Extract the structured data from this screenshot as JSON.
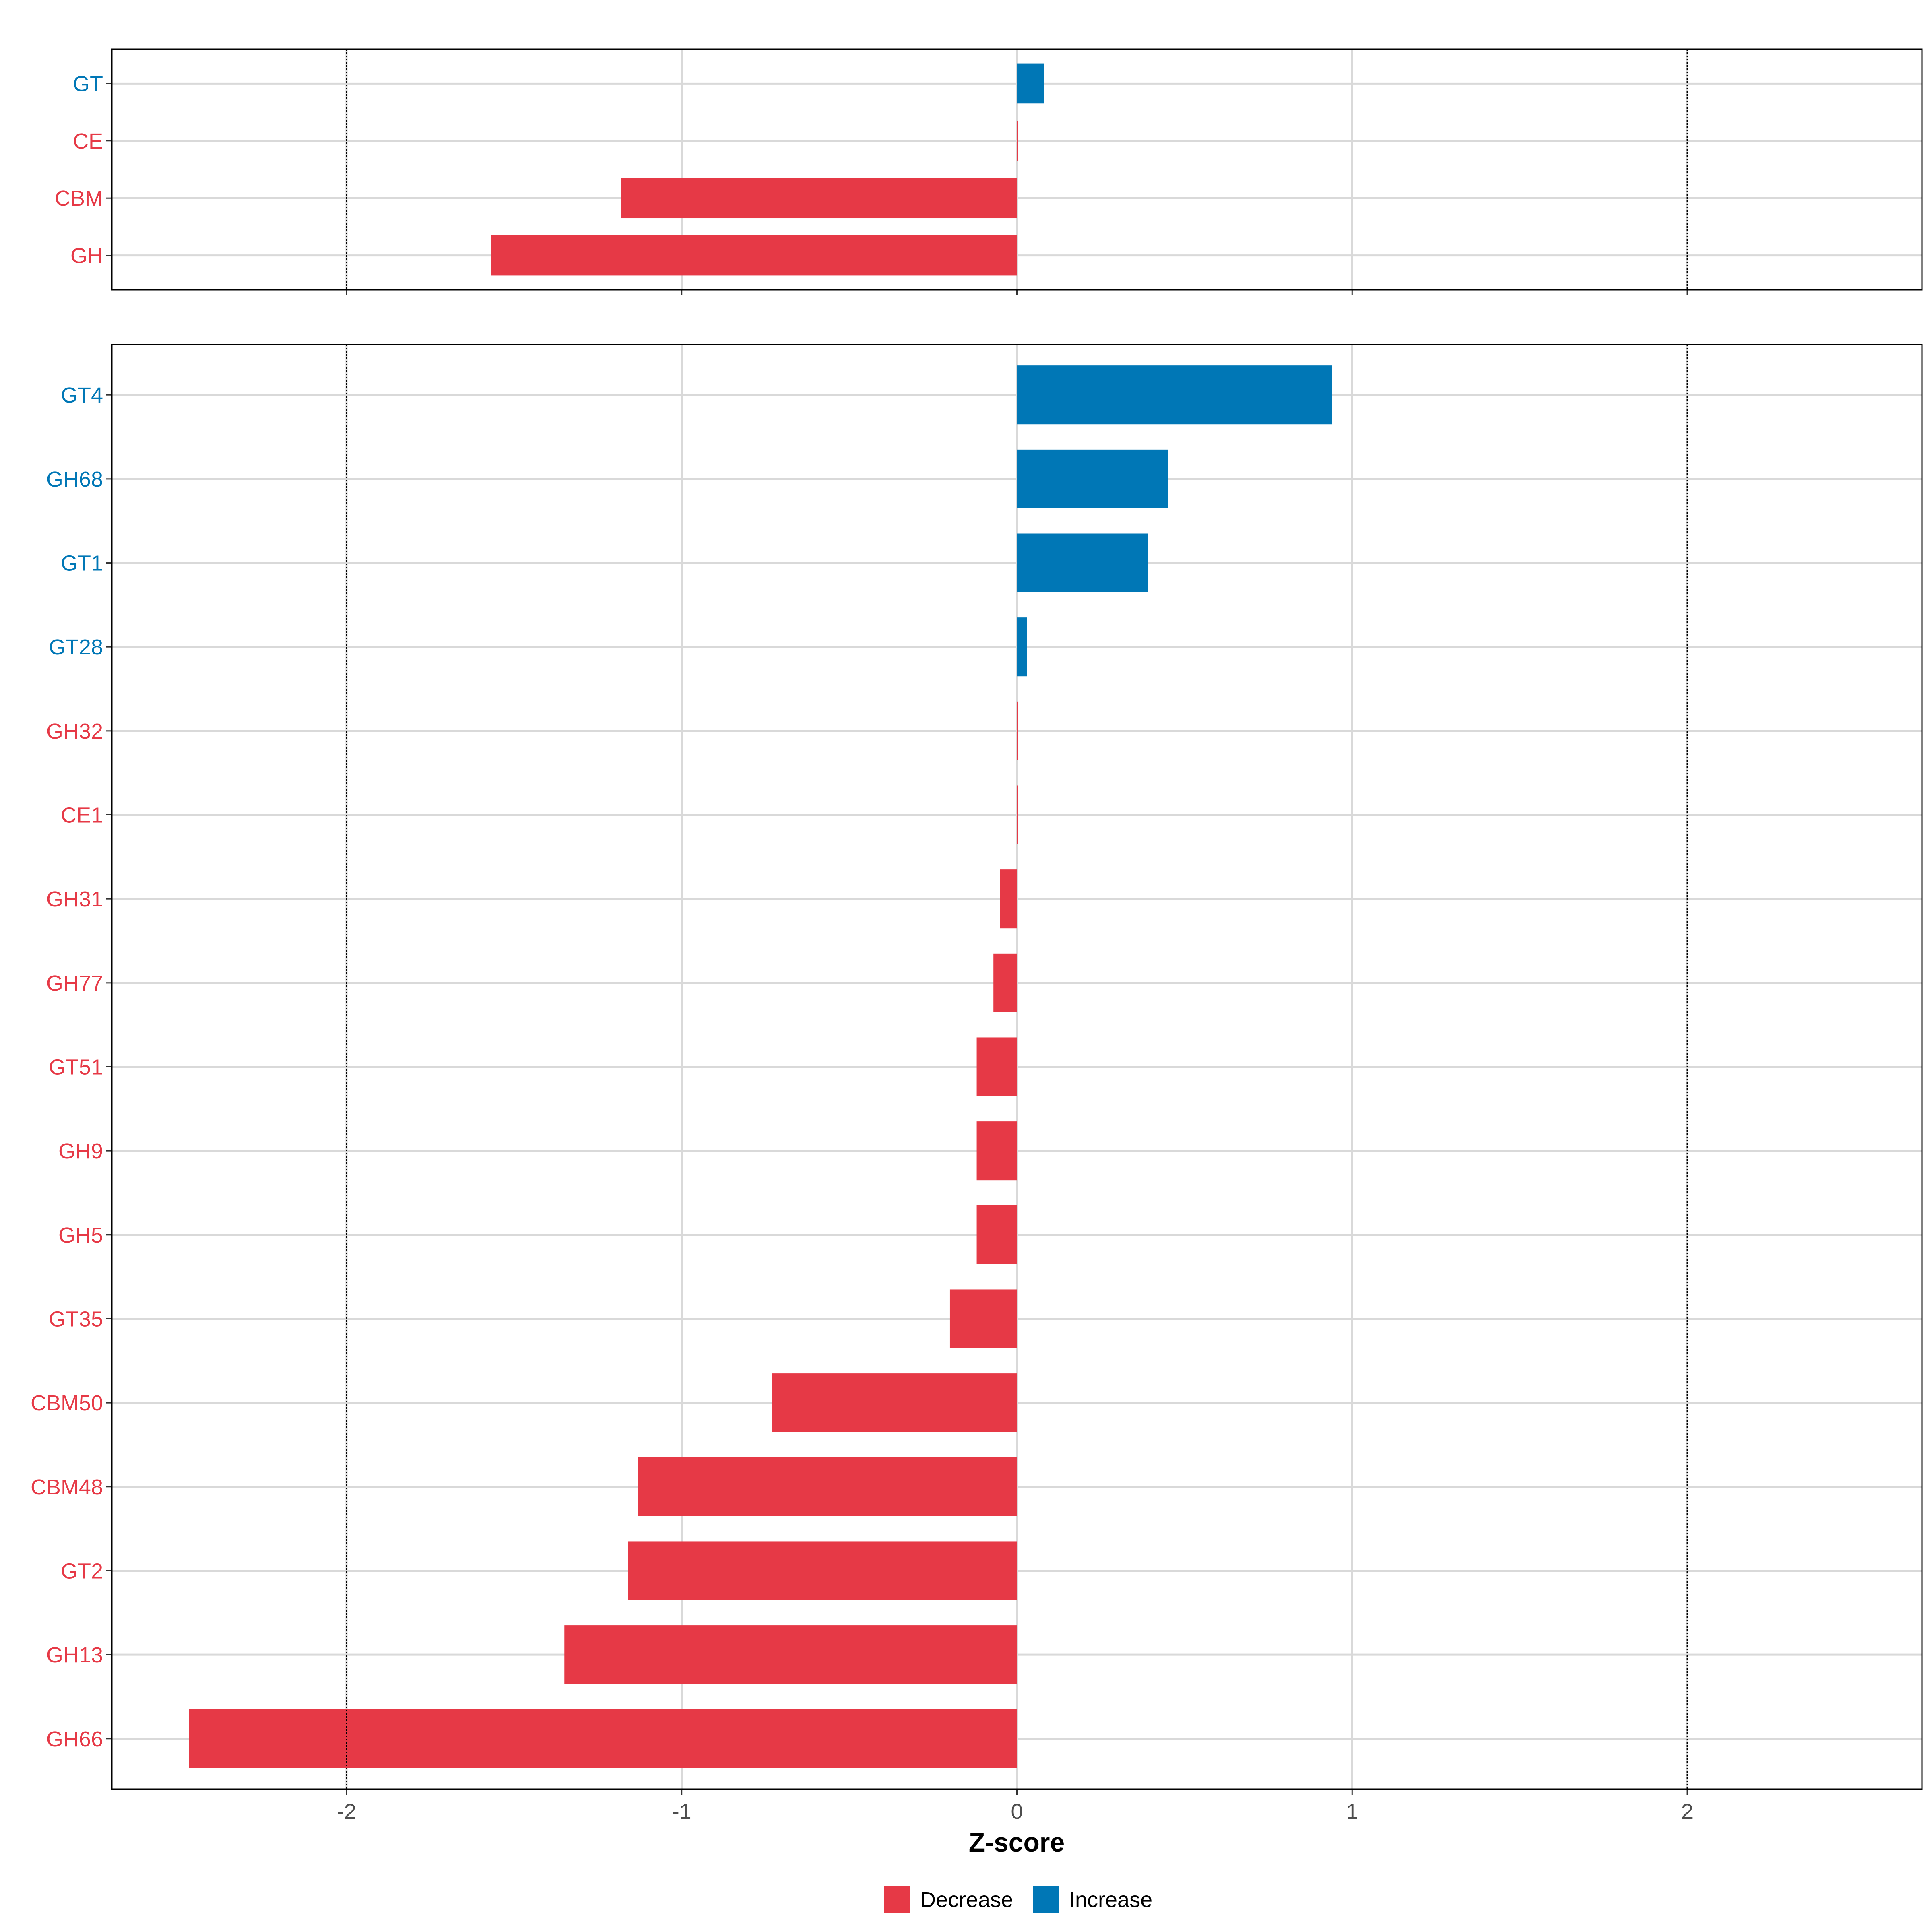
{
  "chart_data": [
    {
      "type": "bar",
      "orientation": "horizontal",
      "panel": "top",
      "categories": [
        "GT",
        "CE",
        "CBM",
        "GH"
      ],
      "values": [
        0.08,
        0.0,
        -1.18,
        -1.57
      ],
      "groups": [
        "Increase",
        "Decrease",
        "Decrease",
        "Decrease"
      ],
      "xlim": [
        -2.7,
        2.7
      ],
      "reference_lines": [
        -2,
        2
      ],
      "grid": true
    },
    {
      "type": "bar",
      "orientation": "horizontal",
      "panel": "bottom",
      "categories": [
        "GT4",
        "GH68",
        "GT1",
        "GT28",
        "GH32",
        "CE1",
        "GH31",
        "GH77",
        "GT51",
        "GH9",
        "GH5",
        "GT35",
        "CBM50",
        "CBM48",
        "GT2",
        "GH13",
        "GH66"
      ],
      "values": [
        0.94,
        0.45,
        0.39,
        0.03,
        0.0,
        0.0,
        -0.05,
        -0.07,
        -0.12,
        -0.12,
        -0.12,
        -0.2,
        -0.73,
        -1.13,
        -1.16,
        -1.35,
        -2.47
      ],
      "groups": [
        "Increase",
        "Increase",
        "Increase",
        "Increase",
        "Decrease",
        "Decrease",
        "Decrease",
        "Decrease",
        "Decrease",
        "Decrease",
        "Decrease",
        "Decrease",
        "Decrease",
        "Decrease",
        "Decrease",
        "Decrease",
        "Decrease"
      ],
      "xlim": [
        -2.7,
        2.7
      ],
      "xticks": [
        -2,
        -1,
        0,
        1,
        2
      ],
      "xlabel": "Z-score",
      "reference_lines": [
        -2,
        2
      ],
      "grid": true
    }
  ],
  "x_tick_labels": [
    "-2",
    "-1",
    "0",
    "1",
    "2"
  ],
  "legend": {
    "placement": "bottom",
    "items": [
      {
        "label": "Decrease",
        "color": "#e63946"
      },
      {
        "label": "Increase",
        "color": "#0077b6"
      }
    ]
  },
  "colors": {
    "Decrease": "#e63946",
    "Increase": "#0077b6"
  }
}
